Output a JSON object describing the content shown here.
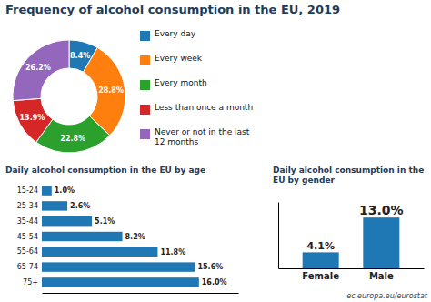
{
  "chart_data": [
    {
      "type": "pie",
      "title": "Frequency of alcohol consumption in the EU, 2019",
      "categories": [
        "Every day",
        "Every week",
        "Every month",
        "Less than once a month",
        "Never or not in the last\n12 months"
      ],
      "values": [
        8.4,
        28.8,
        22.8,
        13.9,
        26.2
      ],
      "value_labels": [
        "8.4%",
        "28.8%",
        "22.8%",
        "13.9%",
        "26.2%"
      ],
      "data_labels": true,
      "legend": "right"
    },
    {
      "type": "bar",
      "title": "Daily alcohol consumption in the EU by age",
      "orientation": "horizontal",
      "categories": [
        "15-24",
        "25-34",
        "35-44",
        "45-54",
        "55-64",
        "65-74",
        "75+"
      ],
      "values": [
        1.0,
        2.6,
        5.1,
        8.2,
        11.8,
        15.6,
        16.0
      ],
      "value_labels": [
        "1.0%",
        "2.6%",
        "5.1%",
        "8.2%",
        "11.8%",
        "15.6%",
        "16.0%"
      ],
      "data_labels": true,
      "xlim": [
        0,
        20
      ],
      "tick_labels": "y"
    },
    {
      "type": "bar",
      "title": "Daily alcohol consumption in the EU by gender",
      "categories": [
        "Female",
        "Male"
      ],
      "values": [
        4.1,
        13.0
      ],
      "value_labels": [
        "4.1%",
        "13.0%"
      ],
      "data_labels": true,
      "ylim": [
        0,
        17
      ],
      "tick_labels": "x",
      "annotations": [
        "ec.europa.eu/eurostat"
      ]
    }
  ]
}
